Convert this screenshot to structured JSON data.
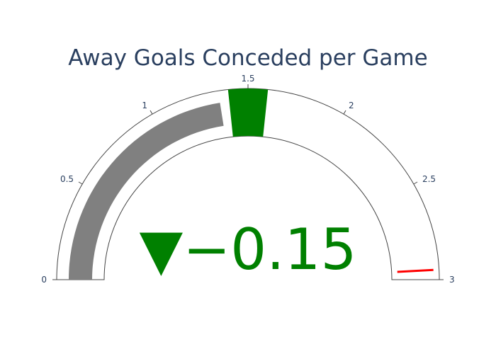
{
  "chart_data": {
    "type": "gauge",
    "title": "Away Goals Conceded per Game",
    "range": [
      0,
      3
    ],
    "ticks": [
      {
        "value": 0,
        "label": "0"
      },
      {
        "value": 0.5,
        "label": "0.5"
      },
      {
        "value": 1,
        "label": "1"
      },
      {
        "value": 1.5,
        "label": "1.5"
      },
      {
        "value": 2,
        "label": "2"
      },
      {
        "value": 2.5,
        "label": "2.5"
      },
      {
        "value": 3,
        "label": "3"
      }
    ],
    "value": 1.35,
    "reference": 1.5,
    "delta": -0.15,
    "delta_label": "−0.15",
    "delta_symbol": "▼",
    "steps": [
      {
        "range": [
          1.4,
          1.6
        ],
        "color": "#008000"
      }
    ],
    "threshold": {
      "value": 2.95,
      "color": "#ff0000"
    },
    "colors": {
      "bar": "#808080",
      "delta_decreasing": "#008000",
      "title": "#2a3f5f",
      "ticks": "#2a3f5f",
      "outline": "#444444"
    }
  }
}
